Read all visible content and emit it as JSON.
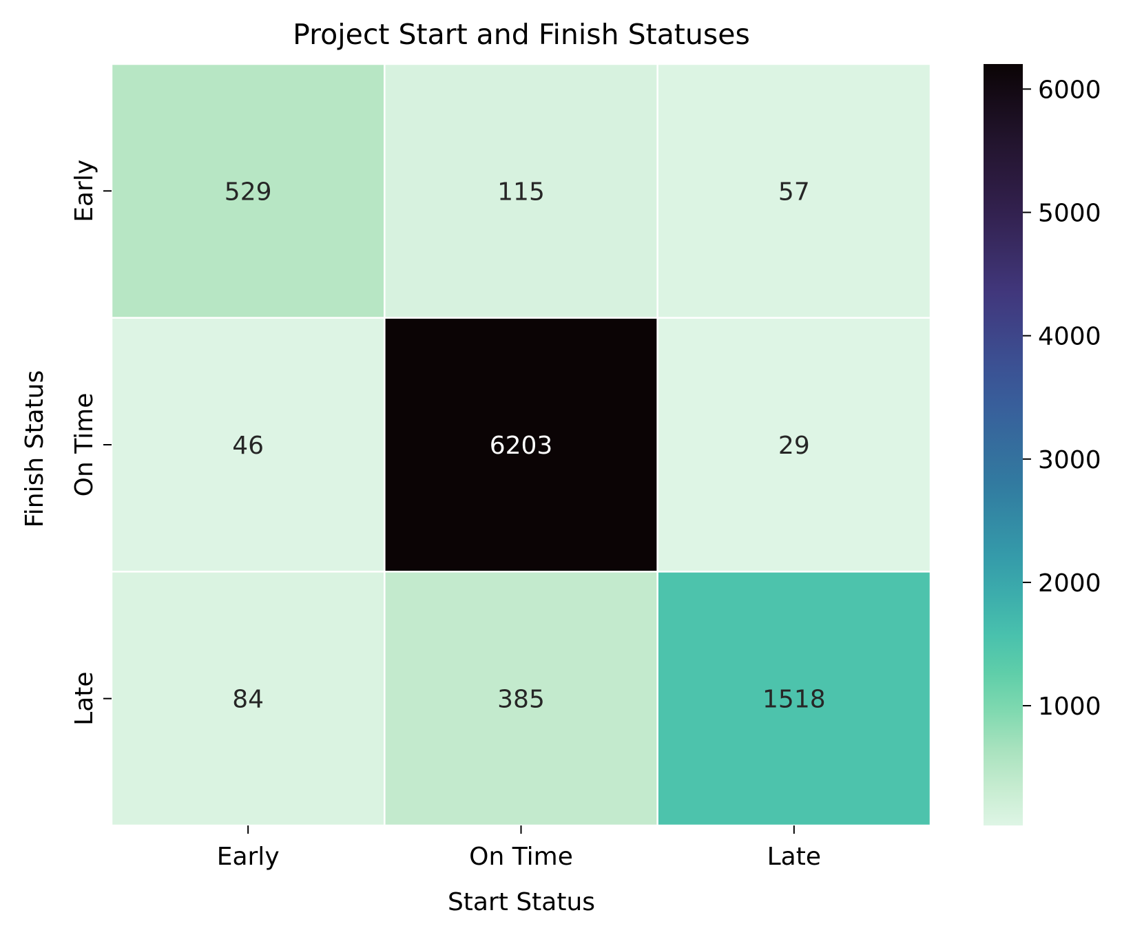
{
  "chart_data": {
    "type": "heatmap",
    "title": "Project Start and Finish Statuses",
    "xlabel": "Start Status",
    "ylabel": "Finish Status",
    "x_categories": [
      "Early",
      "On Time",
      "Late"
    ],
    "y_categories": [
      "Early",
      "On Time",
      "Late"
    ],
    "values": [
      [
        529,
        115,
        57
      ],
      [
        46,
        6203,
        29
      ],
      [
        84,
        385,
        1518
      ]
    ],
    "colorbar": {
      "min": 29,
      "max": 6203,
      "ticks": [
        1000,
        2000,
        3000,
        4000,
        5000,
        6000
      ],
      "tick_labels": [
        "1000",
        "2000",
        "3000",
        "4000",
        "5000",
        "6000"
      ],
      "colormap": "mako_r"
    },
    "grid": false,
    "annotations": true
  }
}
